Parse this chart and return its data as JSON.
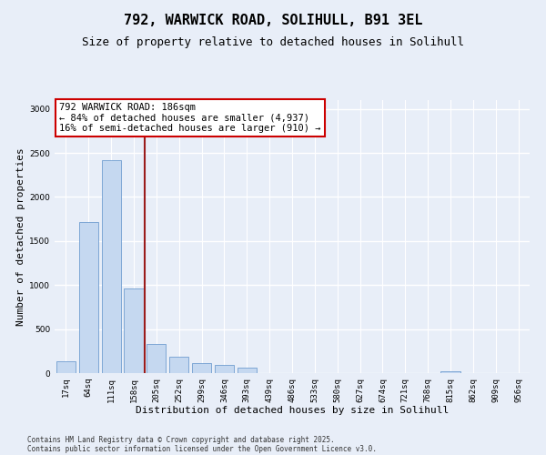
{
  "title1": "792, WARWICK ROAD, SOLIHULL, B91 3EL",
  "title2": "Size of property relative to detached houses in Solihull",
  "xlabel": "Distribution of detached houses by size in Solihull",
  "ylabel": "Number of detached properties",
  "categories": [
    "17sq",
    "64sq",
    "111sq",
    "158sq",
    "205sq",
    "252sq",
    "299sq",
    "346sq",
    "393sq",
    "439sq",
    "486sq",
    "533sq",
    "580sq",
    "627sq",
    "674sq",
    "721sq",
    "768sq",
    "815sq",
    "862sq",
    "909sq",
    "956sq"
  ],
  "values": [
    130,
    1720,
    2420,
    960,
    335,
    185,
    110,
    90,
    60,
    0,
    0,
    0,
    0,
    0,
    0,
    0,
    0,
    25,
    0,
    0,
    0
  ],
  "bar_color": "#c5d8f0",
  "bar_edge_color": "#5b8fc9",
  "vline_x": 3.5,
  "vline_color": "#9b1c1c",
  "annotation_text": "792 WARWICK ROAD: 186sqm\n← 84% of detached houses are smaller (4,937)\n16% of semi-detached houses are larger (910) →",
  "annotation_box_color": "#ffffff",
  "annotation_box_edge_color": "#cc0000",
  "ylim": [
    0,
    3100
  ],
  "yticks": [
    0,
    500,
    1000,
    1500,
    2000,
    2500,
    3000
  ],
  "footnote1": "Contains HM Land Registry data © Crown copyright and database right 2025.",
  "footnote2": "Contains public sector information licensed under the Open Government Licence v3.0.",
  "bg_color": "#e8eef8",
  "grid_color": "#ffffff",
  "title_fontsize": 11,
  "subtitle_fontsize": 9,
  "tick_fontsize": 6.5,
  "label_fontsize": 8,
  "annotation_fontsize": 7.5,
  "footnote_fontsize": 5.5
}
